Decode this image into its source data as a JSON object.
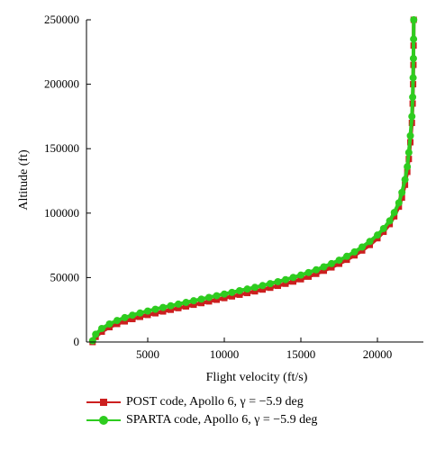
{
  "colors": {
    "post": "#cc1f1f",
    "sparta": "#2ecc1f",
    "axis": "#000000"
  },
  "legend": {
    "post": "POST code, Apollo 6, γ = −5.9 deg",
    "sparta": "SPARTA code, Apollo 6, γ = −5.9 deg"
  },
  "chart_data": {
    "type": "line",
    "title": "",
    "xlabel": "Flight velocity (ft/s)",
    "ylabel": "Altitude (ft)",
    "xlim": [
      1000,
      23000
    ],
    "ylim": [
      0,
      250000
    ],
    "xticks": [
      5000,
      10000,
      15000,
      20000
    ],
    "yticks": [
      0,
      50000,
      100000,
      150000,
      200000,
      250000
    ],
    "grid": false,
    "legend_position": "below",
    "series": [
      {
        "name": "POST code, Apollo 6, γ = −5.9 deg",
        "marker": "square",
        "x": [
          1400,
          1600,
          2000,
          2500,
          3000,
          3500,
          4000,
          4500,
          5000,
          5500,
          6000,
          6500,
          7000,
          7500,
          8000,
          8500,
          9000,
          9500,
          10000,
          10500,
          11000,
          11500,
          12000,
          12500,
          13000,
          13500,
          14000,
          14500,
          15000,
          15500,
          16000,
          16500,
          17000,
          17500,
          18000,
          18500,
          19000,
          19500,
          20000,
          20400,
          20800,
          21100,
          21400,
          21600,
          21800,
          21950,
          22050,
          22150,
          22250,
          22300,
          22330,
          22350,
          22360,
          22370
        ],
        "y": [
          0,
          4000,
          8000,
          11500,
          14000,
          16000,
          17800,
          19500,
          21000,
          22300,
          23700,
          25000,
          26300,
          27600,
          28900,
          30200,
          31500,
          32800,
          34100,
          35400,
          36700,
          38000,
          39300,
          40700,
          42100,
          43600,
          45200,
          46900,
          48700,
          50700,
          52900,
          55300,
          57900,
          60700,
          63800,
          67200,
          71000,
          75300,
          80500,
          85500,
          91500,
          97500,
          105000,
          112000,
          122000,
          132000,
          142000,
          155000,
          170000,
          185000,
          200000,
          215000,
          230000,
          250000
        ]
      },
      {
        "name": "SPARTA code, Apollo 6, γ = −5.9 deg",
        "marker": "circle",
        "x": [
          1400,
          1600,
          2000,
          2500,
          3000,
          3500,
          4000,
          4500,
          5000,
          5500,
          6000,
          6500,
          7000,
          7500,
          8000,
          8500,
          9000,
          9500,
          10000,
          10500,
          11000,
          11500,
          12000,
          12500,
          13000,
          13500,
          14000,
          14500,
          15000,
          15500,
          16000,
          16500,
          17000,
          17500,
          18000,
          18500,
          19000,
          19500,
          20000,
          20400,
          20800,
          21100,
          21400,
          21600,
          21800,
          21950,
          22050,
          22150,
          22250,
          22300,
          22330,
          22350,
          22360,
          22370
        ],
        "y": [
          1000,
          6000,
          10500,
          14000,
          16700,
          18900,
          20800,
          22500,
          24000,
          25400,
          26800,
          28100,
          29400,
          30700,
          32000,
          33300,
          34600,
          35900,
          37200,
          38500,
          39800,
          41100,
          42400,
          43800,
          45300,
          46800,
          48400,
          50100,
          51900,
          53900,
          56000,
          58300,
          60800,
          63500,
          66500,
          69900,
          73700,
          78000,
          83000,
          88000,
          94000,
          100500,
          108000,
          116000,
          126000,
          136000,
          147000,
          160000,
          175000,
          190000,
          205000,
          220000,
          235000,
          250000
        ]
      }
    ]
  }
}
